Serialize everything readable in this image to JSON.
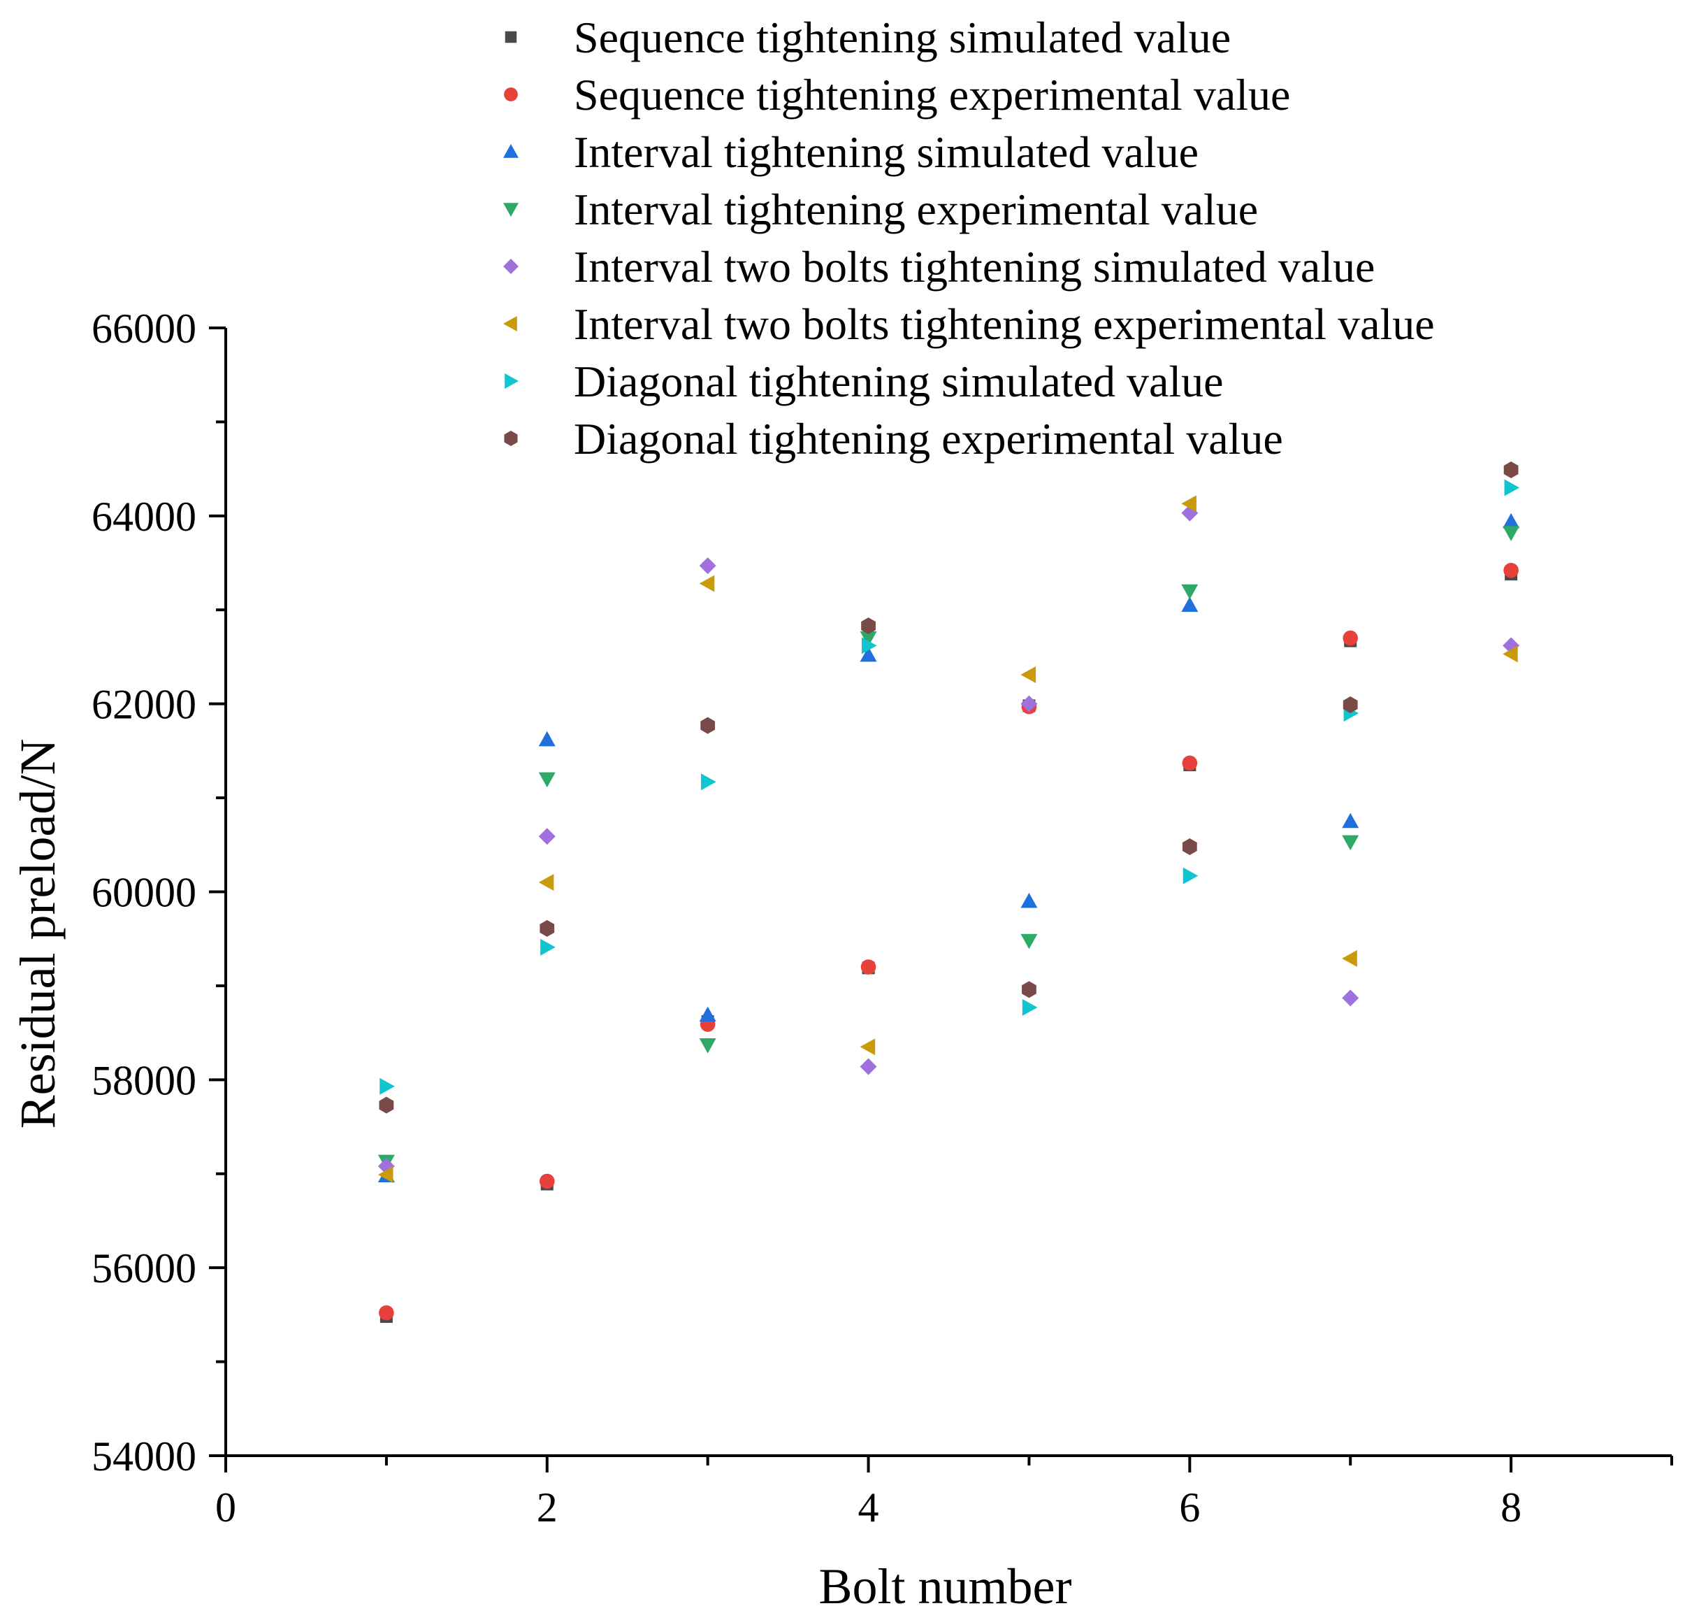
{
  "chart_data": {
    "type": "scatter",
    "title": "",
    "xlabel": "Bolt number",
    "ylabel": "Residual preload/N",
    "xlim": [
      0,
      9
    ],
    "ylim": [
      54000,
      66000
    ],
    "x_ticks": [
      "0",
      "2",
      "4",
      "6",
      "8"
    ],
    "y_ticks": [
      "54000",
      "56000",
      "58000",
      "60000",
      "62000",
      "64000",
      "66000"
    ],
    "legend_position": "top",
    "x": [
      1,
      2,
      3,
      4,
      5,
      6,
      7,
      8
    ],
    "series": [
      {
        "name": "Sequence tightening simulated value",
        "marker": "square",
        "color": "#4a4a4a",
        "values": [
          55480,
          56890,
          58620,
          59190,
          61980,
          61350,
          62670,
          63380
        ]
      },
      {
        "name": "Sequence tightening experimental value",
        "marker": "circle",
        "color": "#e8403b",
        "values": [
          55520,
          56920,
          58590,
          59200,
          61970,
          61370,
          62700,
          63420
        ]
      },
      {
        "name": "Interval tightening simulated value",
        "marker": "triangle-up",
        "color": "#1f6fdc",
        "values": [
          56980,
          61620,
          58690,
          62520,
          59900,
          63050,
          60750,
          63940
        ]
      },
      {
        "name": "Interval tightening experimental value",
        "marker": "triangle-down",
        "color": "#2eaa66",
        "values": [
          57130,
          61200,
          58370,
          62700,
          59480,
          63200,
          60530,
          63820
        ]
      },
      {
        "name": "Interval two bolts tightening simulated value",
        "marker": "diamond",
        "color": "#a070dc",
        "values": [
          57080,
          60590,
          63470,
          58140,
          62000,
          64030,
          58870,
          62620
        ]
      },
      {
        "name": "Interval two bolts tightening experimental value",
        "marker": "triangle-left",
        "color": "#c99a0a",
        "values": [
          56990,
          60100,
          63280,
          58350,
          62310,
          64130,
          59290,
          62530
        ]
      },
      {
        "name": "Diagonal tightening simulated value",
        "marker": "triangle-right",
        "color": "#10c4d0",
        "values": [
          57930,
          59410,
          61170,
          62620,
          58770,
          60170,
          61900,
          64300
        ]
      },
      {
        "name": "Diagonal tightening experimental value",
        "marker": "hexagon",
        "color": "#7a4a48",
        "values": [
          57730,
          59610,
          61770,
          62830,
          58960,
          60480,
          61990,
          64490
        ]
      }
    ]
  }
}
